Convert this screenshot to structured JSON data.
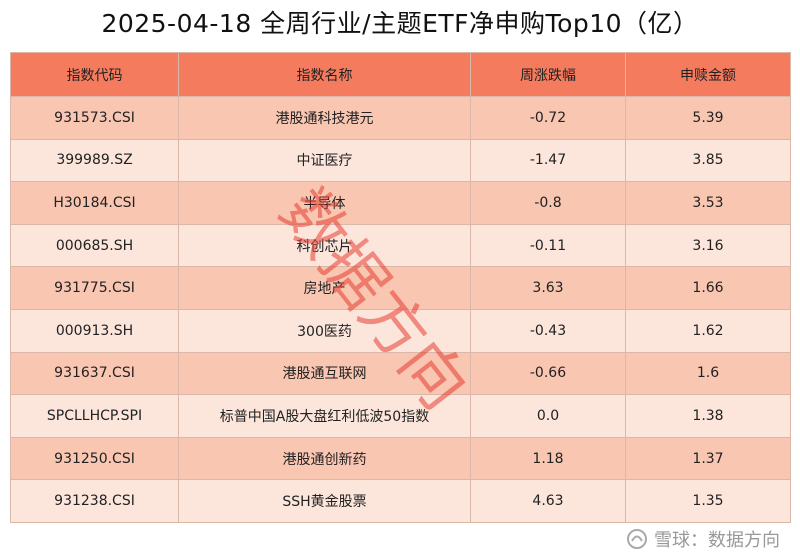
{
  "header": {
    "title": "2025-04-18 全周行业/主题ETF净申购Top10（亿）"
  },
  "table": {
    "columns": [
      "指数代码",
      "指数名称",
      "周涨跌幅",
      "申赎金额"
    ],
    "rows": [
      [
        "931573.CSI",
        "港股通科技港元",
        "-0.72",
        "5.39"
      ],
      [
        "399989.SZ",
        "中证医疗",
        "-1.47",
        "3.85"
      ],
      [
        "H30184.CSI",
        "半导体",
        "-0.8",
        "3.53"
      ],
      [
        "000685.SH",
        "科创芯片",
        "-0.11",
        "3.16"
      ],
      [
        "931775.CSI",
        "房地产",
        "3.63",
        "1.66"
      ],
      [
        "000913.SH",
        "300医药",
        "-0.43",
        "1.62"
      ],
      [
        "931637.CSI",
        "港股通互联网",
        "-0.66",
        "1.6"
      ],
      [
        "SPCLLHCP.SPI",
        "标普中国A股大盘红利低波50指数",
        "0.0",
        "1.38"
      ],
      [
        "931250.CSI",
        "港股通创新药",
        "1.18",
        "1.37"
      ],
      [
        "931238.CSI",
        "SSH黄金股票",
        "4.63",
        "1.35"
      ]
    ]
  },
  "watermark": "数据方向",
  "footer": {
    "source": "雪球：数据方向"
  }
}
